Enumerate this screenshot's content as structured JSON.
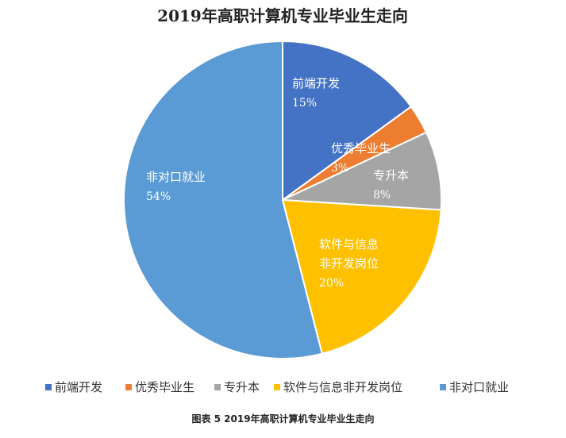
{
  "chart_data": {
    "type": "pie",
    "title": "2019年高职计算机专业毕业生走向",
    "categories": [
      "前端开发",
      "优秀毕业生",
      "专升本",
      "软件与信息非开发岗位",
      "非对口就业"
    ],
    "values": [
      15,
      3,
      8,
      20,
      54
    ],
    "value_labels": [
      "15%",
      "3%",
      "8%",
      "20%",
      "54%"
    ],
    "slice_labels": [
      [
        "前端开发"
      ],
      [
        "优秀毕业生"
      ],
      [
        "专升本"
      ],
      [
        "软件与信息",
        "非开发岗位"
      ],
      [
        "非对口就业"
      ]
    ],
    "colors": [
      "#4472C4",
      "#ED7D31",
      "#A5A5A5",
      "#FFC000",
      "#5B9BD5"
    ],
    "legend_position": "bottom"
  },
  "caption": "图表 5  2019年高职计算机专业毕业生走向"
}
